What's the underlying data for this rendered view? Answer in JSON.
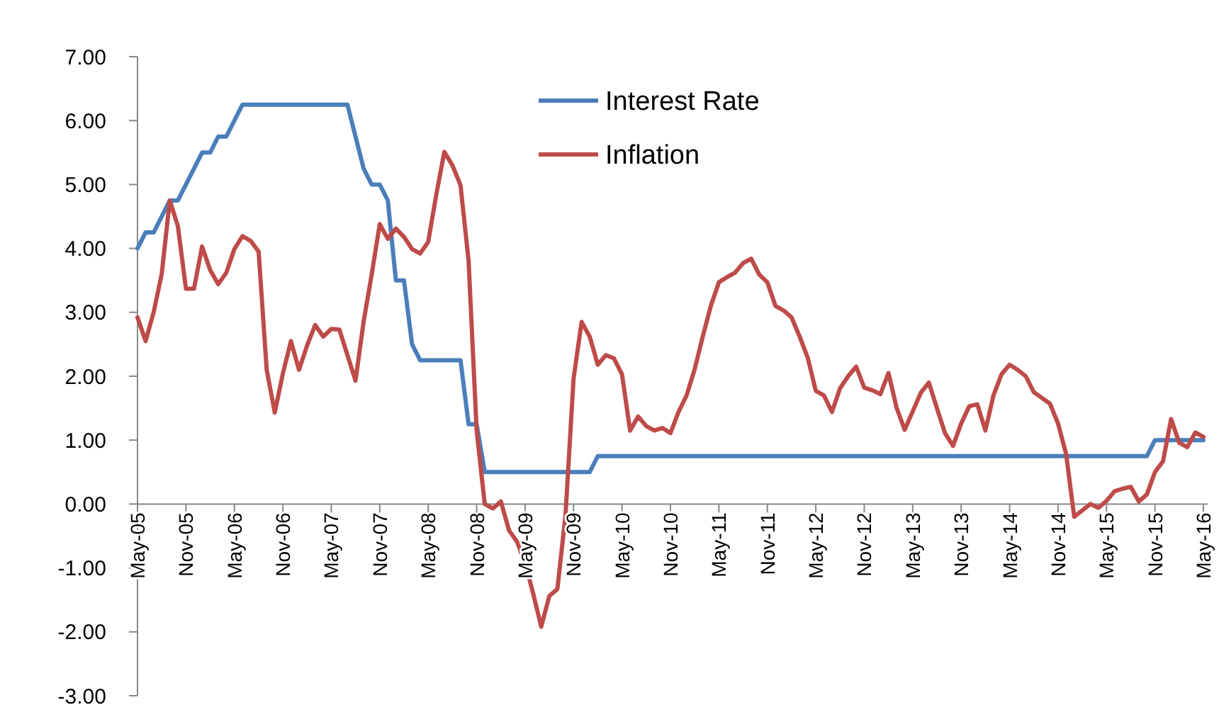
{
  "chart_data": {
    "type": "line",
    "categories": [
      "May-05",
      null,
      null,
      null,
      null,
      null,
      "Nov-05",
      null,
      null,
      null,
      null,
      null,
      "May-06",
      null,
      null,
      null,
      null,
      null,
      "Nov-06",
      null,
      null,
      null,
      null,
      null,
      "May-07",
      null,
      null,
      null,
      null,
      null,
      "Nov-07",
      null,
      null,
      null,
      null,
      null,
      "May-08",
      null,
      null,
      null,
      null,
      null,
      "Nov-08",
      null,
      null,
      null,
      null,
      null,
      "May-09",
      null,
      null,
      null,
      null,
      null,
      "Nov-09",
      null,
      null,
      null,
      null,
      null,
      "May-10",
      null,
      null,
      null,
      null,
      null,
      "Nov-10",
      null,
      null,
      null,
      null,
      null,
      "May-11",
      null,
      null,
      null,
      null,
      null,
      "Nov-11",
      null,
      null,
      null,
      null,
      null,
      "May-12",
      null,
      null,
      null,
      null,
      null,
      "Nov-12",
      null,
      null,
      null,
      null,
      null,
      "May-13",
      null,
      null,
      null,
      null,
      null,
      "Nov-13",
      null,
      null,
      null,
      null,
      null,
      "May-14",
      null,
      null,
      null,
      null,
      null,
      "Nov-14",
      null,
      null,
      null,
      null,
      null,
      "May-15",
      null,
      null,
      null,
      null,
      null,
      "Nov-15",
      null,
      null,
      null,
      null,
      null,
      "May-16"
    ],
    "series": [
      {
        "name": "Interest Rate",
        "color": "#4a7ebb",
        "values": [
          4.0,
          4.25,
          4.25,
          4.5,
          4.75,
          4.75,
          5.0,
          5.25,
          5.5,
          5.5,
          5.75,
          5.75,
          6.0,
          6.25,
          6.25,
          6.25,
          6.25,
          6.25,
          6.25,
          6.25,
          6.25,
          6.25,
          6.25,
          6.25,
          6.25,
          6.25,
          6.25,
          5.75,
          5.25,
          5.0,
          5.0,
          4.75,
          3.5,
          3.5,
          2.5,
          2.25,
          2.25,
          2.25,
          2.25,
          2.25,
          2.25,
          1.25,
          1.25,
          0.5,
          0.5,
          0.5,
          0.5,
          0.5,
          0.5,
          0.5,
          0.5,
          0.5,
          0.5,
          0.5,
          0.5,
          0.5,
          0.5,
          0.75,
          0.75,
          0.75,
          0.75,
          0.75,
          0.75,
          0.75,
          0.75,
          0.75,
          0.75,
          0.75,
          0.75,
          0.75,
          0.75,
          0.75,
          0.75,
          0.75,
          0.75,
          0.75,
          0.75,
          0.75,
          0.75,
          0.75,
          0.75,
          0.75,
          0.75,
          0.75,
          0.75,
          0.75,
          0.75,
          0.75,
          0.75,
          0.75,
          0.75,
          0.75,
          0.75,
          0.75,
          0.75,
          0.75,
          0.75,
          0.75,
          0.75,
          0.75,
          0.75,
          0.75,
          0.75,
          0.75,
          0.75,
          0.75,
          0.75,
          0.75,
          0.75,
          0.75,
          0.75,
          0.75,
          0.75,
          0.75,
          0.75,
          0.75,
          0.75,
          0.75,
          0.75,
          0.75,
          0.75,
          0.75,
          0.75,
          0.75,
          0.75,
          0.75,
          1.0,
          1.0,
          1.0,
          1.0,
          1.0,
          1.0,
          1.0
        ]
      },
      {
        "name": "Inflation",
        "color": "#be4b48",
        "values": [
          2.92,
          2.55,
          3.0,
          3.6,
          4.75,
          4.35,
          3.37,
          3.37,
          4.03,
          3.66,
          3.44,
          3.62,
          3.99,
          4.19,
          4.12,
          3.95,
          2.1,
          1.43,
          2.04,
          2.55,
          2.1,
          2.48,
          2.8,
          2.62,
          2.74,
          2.73,
          2.33,
          1.93,
          2.85,
          3.59,
          4.38,
          4.15,
          4.31,
          4.18,
          3.99,
          3.92,
          4.1,
          4.84,
          5.51,
          5.3,
          4.99,
          3.81,
          1.15,
          0.0,
          -0.07,
          0.04,
          -0.41,
          -0.59,
          -0.92,
          -1.4,
          -1.92,
          -1.44,
          -1.33,
          -0.18,
          1.96,
          2.85,
          2.62,
          2.18,
          2.33,
          2.28,
          2.03,
          1.15,
          1.37,
          1.22,
          1.15,
          1.19,
          1.11,
          1.44,
          1.7,
          2.11,
          2.62,
          3.1,
          3.47,
          3.55,
          3.62,
          3.77,
          3.84,
          3.59,
          3.47,
          3.1,
          3.03,
          2.92,
          2.62,
          2.29,
          1.77,
          1.7,
          1.44,
          1.81,
          2.0,
          2.15,
          1.82,
          1.78,
          1.72,
          2.05,
          1.51,
          1.16,
          1.45,
          1.74,
          1.9,
          1.5,
          1.11,
          0.91,
          1.26,
          1.53,
          1.56,
          1.15,
          1.7,
          2.03,
          2.18,
          2.1,
          2.0,
          1.75,
          1.66,
          1.57,
          1.26,
          0.78,
          -0.2,
          -0.1,
          0.0,
          -0.06,
          0.05,
          0.2,
          0.24,
          0.27,
          0.04,
          0.15,
          0.5,
          0.67,
          1.33,
          0.96,
          0.89,
          1.12,
          1.05
        ]
      }
    ],
    "ylim": [
      -3,
      7
    ],
    "yticks": [
      {
        "value": -3,
        "label": "-3.00"
      },
      {
        "value": -2,
        "label": "-2.00"
      },
      {
        "value": -1,
        "label": "-1.00"
      },
      {
        "value": 0,
        "label": "0.00"
      },
      {
        "value": 1,
        "label": "1.00"
      },
      {
        "value": 2,
        "label": "2.00"
      },
      {
        "value": 3,
        "label": "3.00"
      },
      {
        "value": 4,
        "label": "4.00"
      },
      {
        "value": 5,
        "label": "5.00"
      },
      {
        "value": 6,
        "label": "6.00"
      },
      {
        "value": 7,
        "label": "7.00"
      }
    ],
    "legend": "top",
    "grid": false,
    "marker": "none",
    "line_style": "solid"
  }
}
